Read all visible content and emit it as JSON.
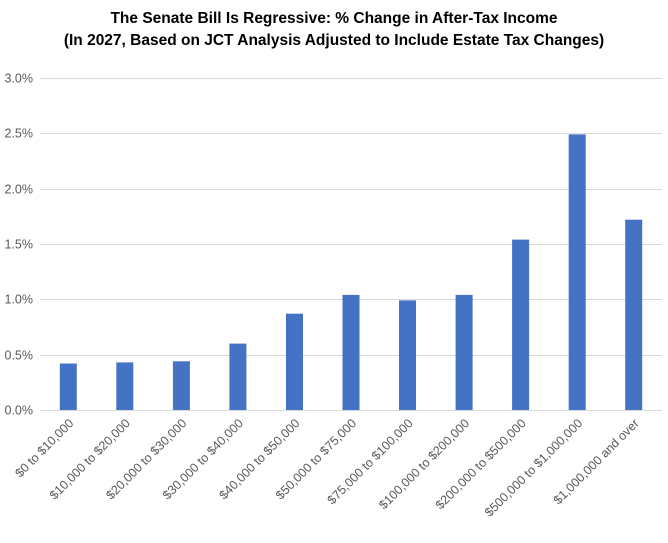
{
  "chart_data": {
    "type": "bar",
    "title": "The Senate Bill Is Regressive: % Change in After-Tax Income",
    "subtitle": "(In 2027, Based on JCT Analysis Adjusted to Include Estate Tax Changes)",
    "xlabel": "",
    "ylabel": "",
    "categories": [
      "$0 to $10,000",
      "$10,000 to $20,000",
      "$20,000 to $30,000",
      "$30,000 to $40,000",
      "$40,000 to $50,000",
      "$50,000 to $75,000",
      "$75,000 to $100,000",
      "$100,000 to $200,000",
      "$200,000 to $500,000",
      "$500,000 to $1,000,000",
      "$1,000,000 and over"
    ],
    "values": [
      0.42,
      0.43,
      0.44,
      0.6,
      0.87,
      1.04,
      0.99,
      1.04,
      1.54,
      2.49,
      1.72
    ],
    "ylim": [
      0,
      3.0
    ],
    "yticks": [
      "0.0%",
      "0.5%",
      "1.0%",
      "1.5%",
      "2.0%",
      "2.5%",
      "3.0%"
    ],
    "grid": true,
    "legend": "none",
    "bar_color": "#4472c4"
  }
}
